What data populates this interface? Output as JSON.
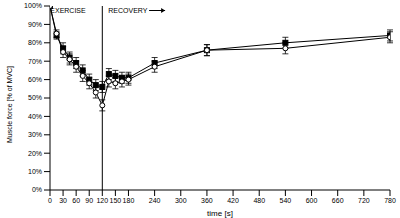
{
  "chart_data": {
    "type": "line",
    "x_label": "time [s]",
    "y_label": "Muscle force [% of MVC]",
    "annotations": [
      "EXERCISE",
      "RECOVERY"
    ],
    "reference_x": 120,
    "x": [
      0,
      15,
      30,
      45,
      60,
      75,
      90,
      105,
      120,
      135,
      150,
      165,
      180,
      240,
      360,
      540,
      780
    ],
    "series": [
      {
        "color": "#000000",
        "marker": "square",
        "values": [
          100,
          84,
          77,
          72,
          69,
          65,
          60,
          57,
          56,
          63,
          62,
          61,
          61,
          69,
          76,
          80,
          84
        ],
        "errors": [
          0,
          2,
          3,
          3,
          3,
          3,
          3,
          3,
          3,
          3,
          3,
          3,
          3,
          3,
          3,
          3,
          3
        ]
      },
      {
        "color": "#000000",
        "marker": "circle",
        "values": [
          100,
          85,
          75,
          71,
          67,
          62,
          58,
          53,
          46,
          59,
          58,
          59,
          60,
          67,
          76,
          77,
          83
        ],
        "errors": [
          0,
          2,
          3,
          3,
          3,
          3,
          3,
          3,
          3,
          3,
          3,
          3,
          3,
          3,
          3,
          3,
          3
        ]
      }
    ],
    "xlim": [
      0,
      780
    ],
    "xticks": [
      0,
      30,
      60,
      90,
      120,
      150,
      180,
      240,
      300,
      360,
      420,
      480,
      540,
      600,
      660,
      720,
      780
    ],
    "ylim": [
      0,
      100
    ],
    "yticks": [
      {
        "value": 0,
        "label": "0%"
      },
      {
        "value": 10,
        "label": "10%"
      },
      {
        "value": 20,
        "label": "20%"
      },
      {
        "value": 30,
        "label": "30%"
      },
      {
        "value": 40,
        "label": "40%"
      },
      {
        "value": 50,
        "label": "50%"
      },
      {
        "value": 60,
        "label": "60%"
      },
      {
        "value": 70,
        "label": "70%"
      },
      {
        "value": 80,
        "label": "80%"
      },
      {
        "value": 90,
        "label": "90%"
      },
      {
        "value": 100,
        "label": "100%"
      }
    ],
    "grid": false
  }
}
